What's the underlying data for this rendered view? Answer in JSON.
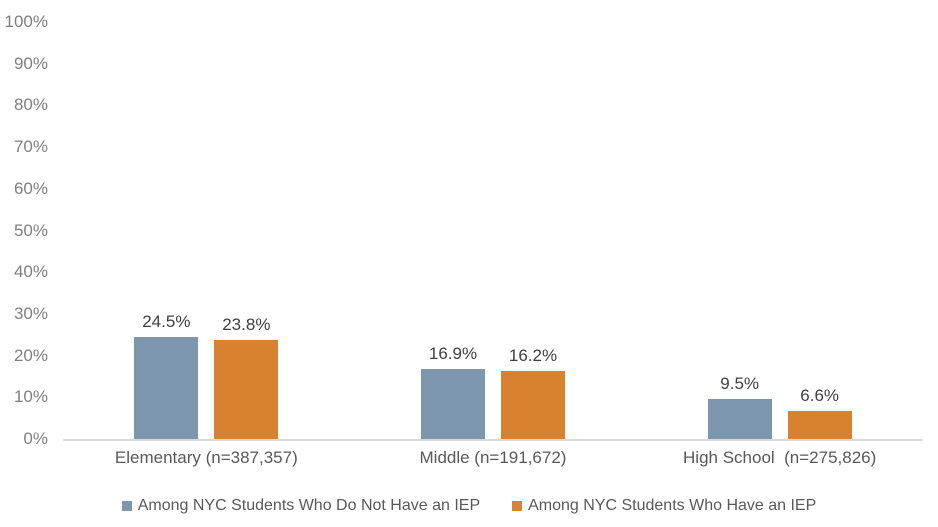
{
  "chart_data": {
    "type": "bar",
    "categories": [
      "Elementary (n=387,357)",
      "Middle (n=191,672)",
      "High School  (n=275,826)"
    ],
    "series": [
      {
        "name": "Among NYC Students Who Do Not Have an IEP",
        "color": "#7C97AD",
        "values": [
          24.5,
          16.9,
          9.5
        ]
      },
      {
        "name": "Among NYC Students Who Have an IEP",
        "color": "#D8822F",
        "values": [
          23.8,
          16.2,
          6.6
        ]
      }
    ],
    "value_label_format": "percent_one_decimal",
    "y_ticks": [
      "100%",
      "90%",
      "80%",
      "70%",
      "60%",
      "50%",
      "40%",
      "30%",
      "20%",
      "10%",
      "0%"
    ],
    "ylim": [
      0,
      100
    ],
    "title": "",
    "xlabel": "",
    "ylabel": "",
    "grid": false,
    "legend_position": "bottom",
    "colors": {
      "axis_line": "#D9D9D9",
      "tick_text": "#7F7F7F",
      "category_text": "#595959",
      "value_text": "#404040",
      "legend_text": "#595959",
      "background": "#FFFFFF"
    }
  }
}
